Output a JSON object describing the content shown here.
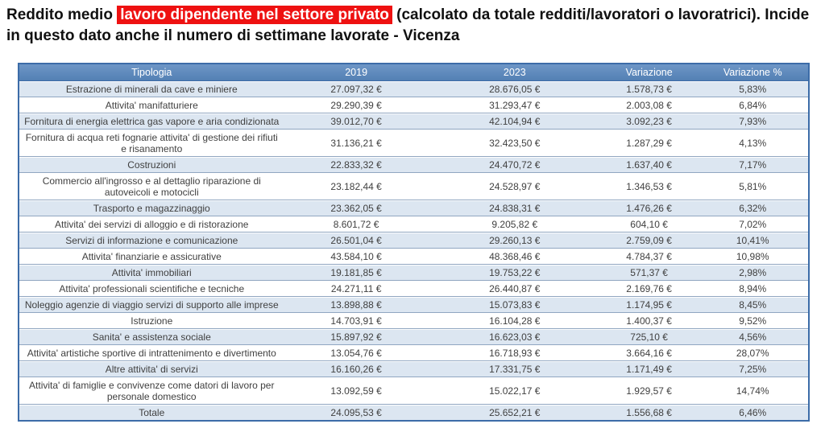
{
  "title": {
    "prefix": "Reddito medio ",
    "highlight": "lavoro dipendente nel settore privato",
    "suffix": " (calcolato da totale redditi/lavoratori o lavoratrici). Incide in questo dato anche il numero di settimane lavorate - Vicenza"
  },
  "colors": {
    "highlight_bg": "#ee1111",
    "highlight_text": "#ffffff",
    "header_bg": "#5b87bb",
    "stripe_bg": "#dce6f1",
    "row_line": "#90a6c1",
    "outer_border": "#3c6ca8",
    "body_text": "#404040"
  },
  "chart_data": {
    "type": "table",
    "columns": [
      "Tipologia",
      "2019",
      "2023",
      "Variazione",
      "Variazione %"
    ],
    "column_keys": [
      "tipologia",
      "y2019",
      "y2023",
      "variazione",
      "variazione-pct"
    ],
    "rows": [
      [
        "Estrazione di minerali da cave e miniere",
        "27.097,32 €",
        "28.676,05 €",
        "1.578,73 €",
        "5,83%"
      ],
      [
        "Attivita' manifatturiere",
        "29.290,39 €",
        "31.293,47 €",
        "2.003,08 €",
        "6,84%"
      ],
      [
        "Fornitura di energia elettrica  gas  vapore e aria condizionata",
        "39.012,70 €",
        "42.104,94 €",
        "3.092,23 €",
        "7,93%"
      ],
      [
        "Fornitura di acqua  reti fognarie  attivita' di gestione dei rifiuti e risanamento",
        "31.136,21 €",
        "32.423,50 €",
        "1.287,29 €",
        "4,13%"
      ],
      [
        "Costruzioni",
        "22.833,32 €",
        "24.470,72 €",
        "1.637,40 €",
        "7,17%"
      ],
      [
        "Commercio all'ingrosso e al dettaglio  riparazione di autoveicoli e motocicli",
        "23.182,44 €",
        "24.528,97 €",
        "1.346,53 €",
        "5,81%"
      ],
      [
        "Trasporto e magazzinaggio",
        "23.362,05 €",
        "24.838,31 €",
        "1.476,26 €",
        "6,32%"
      ],
      [
        "Attivita' dei servizi di alloggio e di ristorazione",
        "8.601,72 €",
        "9.205,82 €",
        "604,10 €",
        "7,02%"
      ],
      [
        "Servizi di informazione e comunicazione",
        "26.501,04 €",
        "29.260,13 €",
        "2.759,09 €",
        "10,41%"
      ],
      [
        "Attivita' finanziarie e assicurative",
        "43.584,10 €",
        "48.368,46 €",
        "4.784,37 €",
        "10,98%"
      ],
      [
        "Attivita' immobiliari",
        "19.181,85 €",
        "19.753,22 €",
        "571,37 €",
        "2,98%"
      ],
      [
        "Attivita' professionali  scientifiche e tecniche",
        "24.271,11 €",
        "26.440,87 €",
        "2.169,76 €",
        "8,94%"
      ],
      [
        "Noleggio  agenzie di viaggio  servizi di supporto alle imprese",
        "13.898,88 €",
        "15.073,83 €",
        "1.174,95 €",
        "8,45%"
      ],
      [
        "Istruzione",
        "14.703,91 €",
        "16.104,28 €",
        "1.400,37 €",
        "9,52%"
      ],
      [
        "Sanita' e assistenza sociale",
        "15.897,92 €",
        "16.623,03 €",
        "725,10 €",
        "4,56%"
      ],
      [
        "Attivita' artistiche  sportive  di intrattenimento e divertimento",
        "13.054,76 €",
        "16.718,93 €",
        "3.664,16 €",
        "28,07%"
      ],
      [
        "Altre attivita' di servizi",
        "16.160,26 €",
        "17.331,75 €",
        "1.171,49 €",
        "7,25%"
      ],
      [
        "Attivita' di famiglie e convivenze come datori di lavoro per personale domestico",
        "13.092,59 €",
        "15.022,17 €",
        "1.929,57 €",
        "14,74%"
      ],
      [
        "Totale",
        "24.095,53 €",
        "25.652,21 €",
        "1.556,68 €",
        "6,46%"
      ]
    ]
  }
}
